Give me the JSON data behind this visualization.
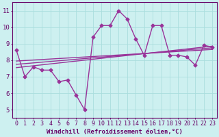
{
  "xlabel": "Windchill (Refroidissement éolien,°C)",
  "bg_color": "#cdf0f0",
  "line_color": "#993399",
  "grid_color": "#aadddd",
  "axis_color": "#660066",
  "text_color": "#660066",
  "x_data": [
    0,
    1,
    2,
    3,
    4,
    5,
    6,
    7,
    8,
    9,
    10,
    11,
    12,
    13,
    14,
    15,
    16,
    17,
    18,
    19,
    20,
    21,
    22,
    23
  ],
  "line1": [
    8.6,
    7.0,
    7.6,
    7.4,
    7.4,
    6.7,
    6.8,
    5.9,
    5.0,
    9.4,
    10.1,
    10.1,
    11.0,
    10.5,
    9.3,
    8.3,
    10.1,
    10.1,
    8.3,
    8.3,
    8.2,
    7.7,
    8.9,
    8.8
  ],
  "trend1_start": 7.55,
  "trend1_end": 8.85,
  "trend2_start": 7.75,
  "trend2_end": 8.75,
  "trend3_start": 7.95,
  "trend3_end": 8.65,
  "ylim": [
    4.5,
    11.5
  ],
  "xlim": [
    -0.5,
    23.5
  ],
  "yticks": [
    5,
    6,
    7,
    8,
    9,
    10,
    11
  ],
  "xticks": [
    0,
    1,
    2,
    3,
    4,
    5,
    6,
    7,
    8,
    9,
    10,
    11,
    12,
    13,
    14,
    15,
    16,
    17,
    18,
    19,
    20,
    21,
    22,
    23
  ],
  "marker_size": 2.5,
  "line_width": 1.0,
  "tick_fontsize": 6.0,
  "xlabel_fontsize": 6.5
}
